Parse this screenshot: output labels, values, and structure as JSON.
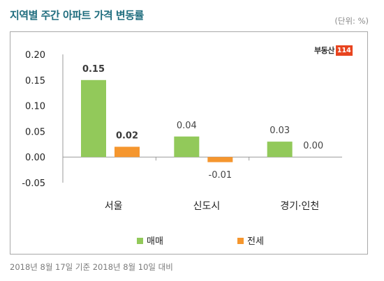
{
  "header": {
    "title": "지역별 주간 아파트 가격 변동률",
    "unit": "(단위: %)"
  },
  "brand": {
    "text": "부동산",
    "badge": "114"
  },
  "footnote": "2018년 8월 17일 기준 2018년 8월 10일 대비",
  "chart_data": {
    "type": "bar",
    "categories": [
      "서울",
      "신도시",
      "경기·인천"
    ],
    "series": [
      {
        "name": "매매",
        "values": [
          0.15,
          0.04,
          0.03
        ],
        "color": "#92c95a",
        "labels": [
          "0.15",
          "0.04",
          "0.03"
        ],
        "bold": [
          true,
          false,
          false
        ]
      },
      {
        "name": "전세",
        "values": [
          0.02,
          -0.01,
          0.0
        ],
        "color": "#f5962e",
        "labels": [
          "0.02",
          "-0.01",
          "0.00"
        ],
        "bold": [
          true,
          false,
          false
        ]
      }
    ],
    "yticks": [
      "0.20",
      "0.15",
      "0.10",
      "0.05",
      "0.00",
      "-0.05"
    ],
    "ylim": [
      -0.05,
      0.2
    ],
    "grid": false,
    "legend_position": "bottom"
  }
}
